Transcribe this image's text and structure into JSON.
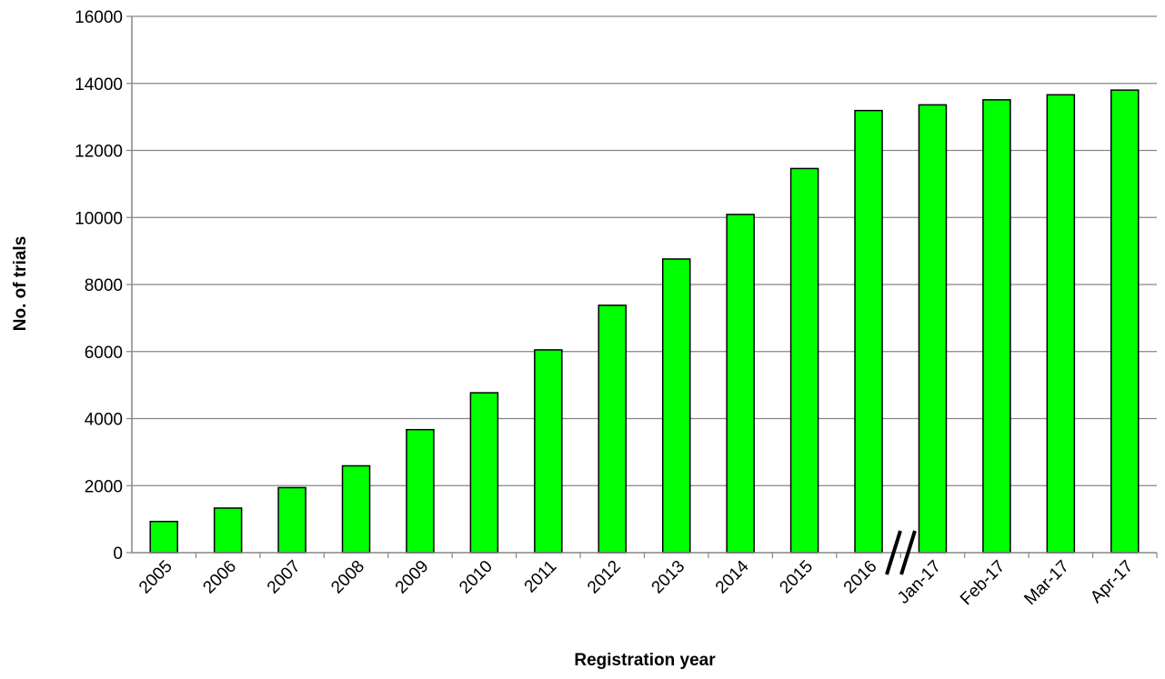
{
  "chart_data": {
    "type": "bar",
    "title": "",
    "xlabel": "Registration year",
    "ylabel": "No. of trials",
    "ylim": [
      0,
      16000
    ],
    "yticks": [
      0,
      2000,
      4000,
      6000,
      8000,
      10000,
      12000,
      14000,
      16000
    ],
    "grid": "horizontal",
    "legend": "none",
    "bar_color": "#00ff00",
    "bar_edge_color": "#000000",
    "axis_break": "between 2016 and Jan-17",
    "categories": [
      "2005",
      "2006",
      "2007",
      "2008",
      "2009",
      "2010",
      "2011",
      "2012",
      "2013",
      "2014",
      "2015",
      "2016",
      "Jan-17",
      "Feb-17",
      "Mar-17",
      "Apr-17"
    ],
    "values": [
      930,
      1330,
      1940,
      2590,
      3670,
      4770,
      6050,
      7380,
      8760,
      10090,
      11460,
      13190,
      13360,
      13510,
      13660,
      13800
    ]
  }
}
